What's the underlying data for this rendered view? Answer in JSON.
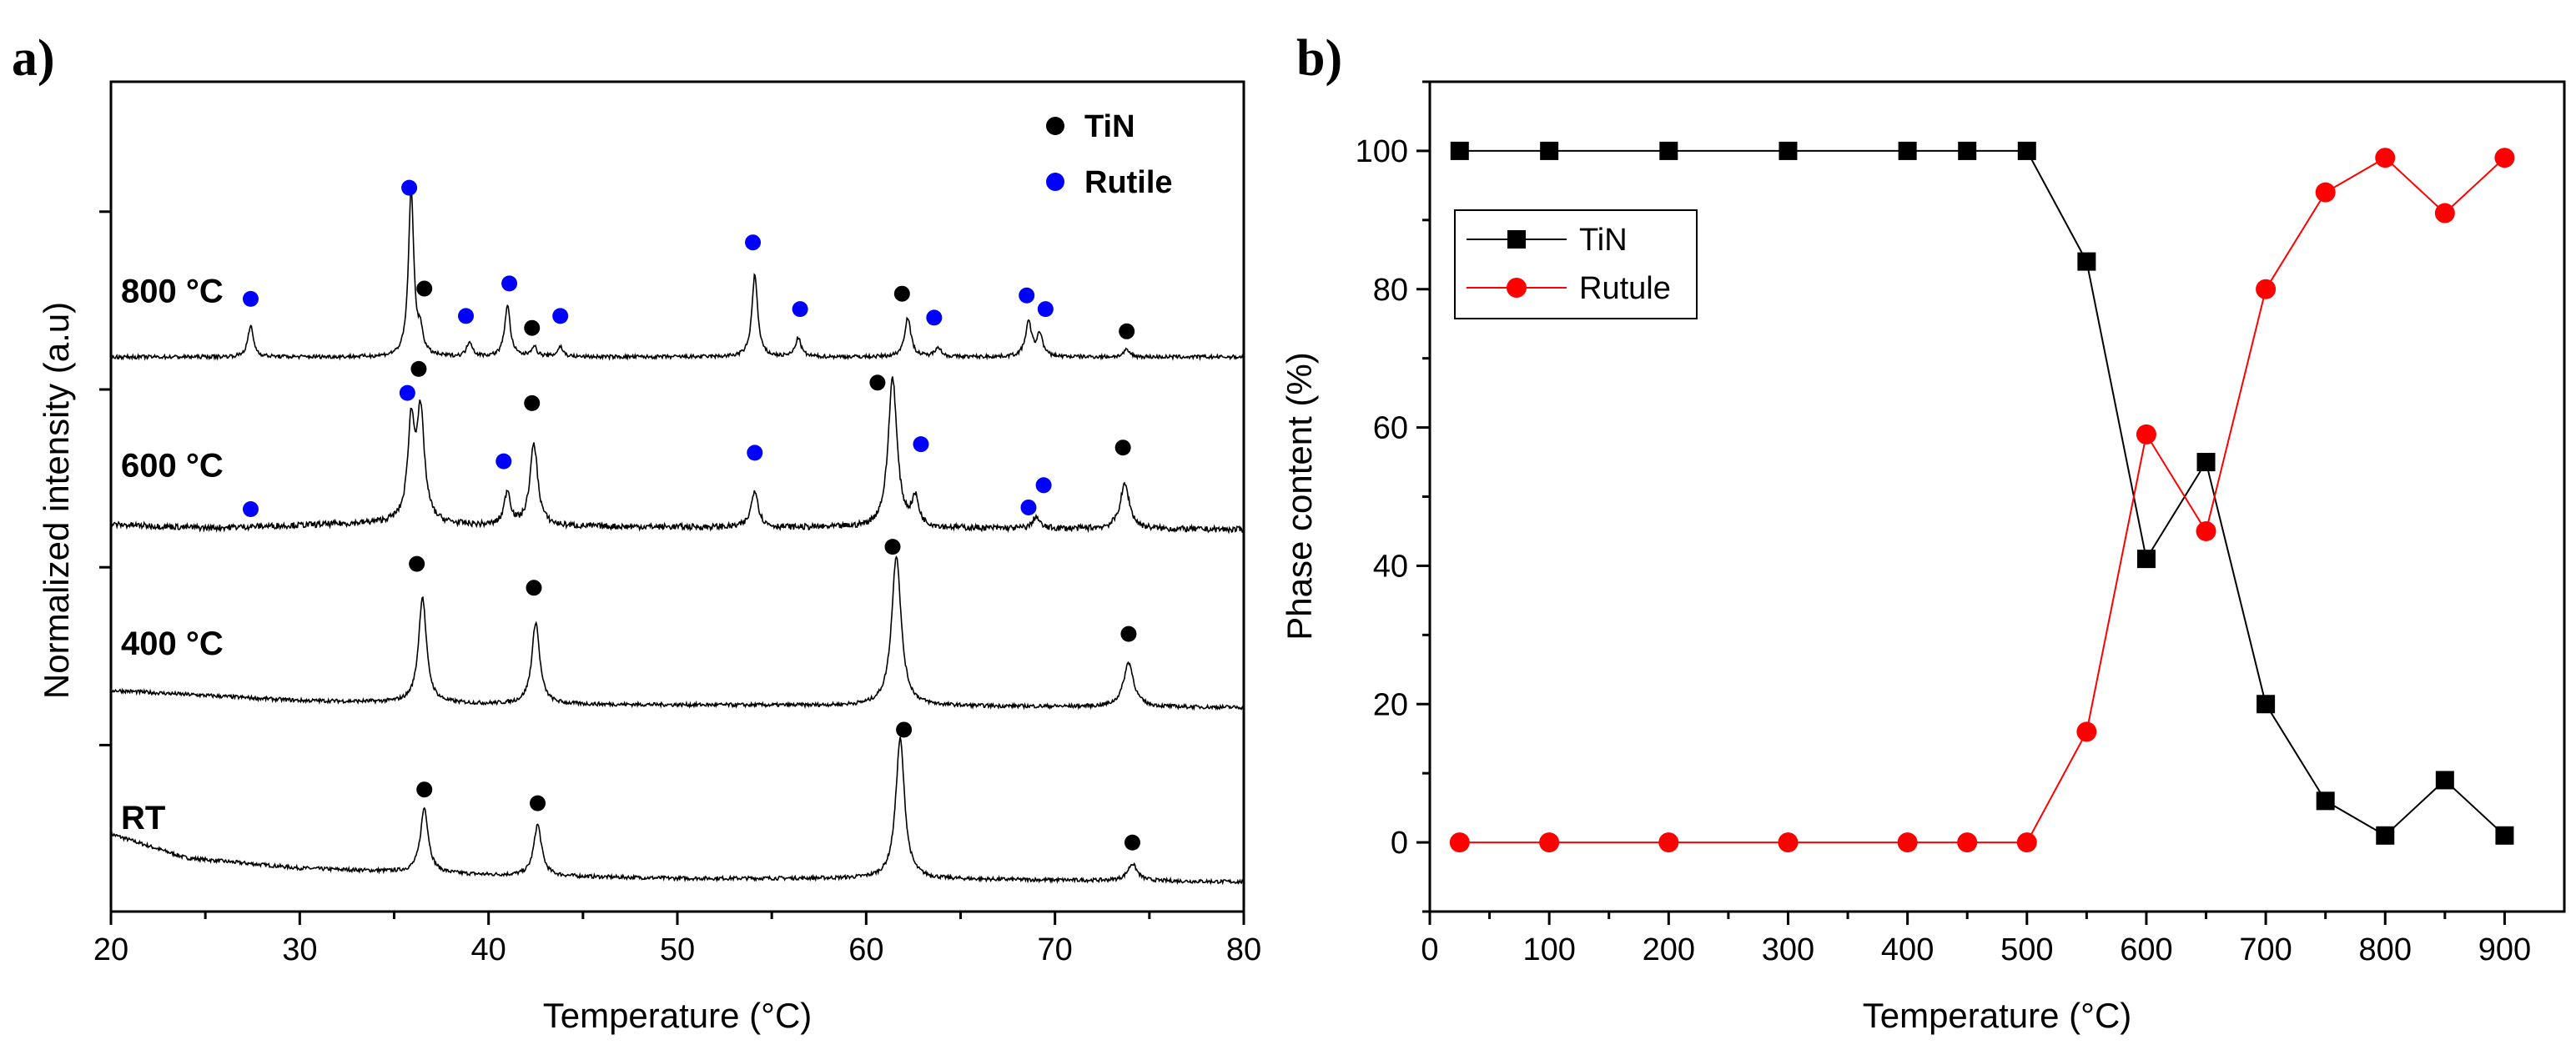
{
  "chart_data": [
    {
      "type": "line",
      "panel_label": "a)",
      "title": "",
      "xlabel": "Temperature (°C)",
      "ylabel": "Normalized intensity (a.u)",
      "xlim": [
        20,
        80
      ],
      "xticks": [
        20,
        30,
        40,
        50,
        60,
        70,
        80
      ],
      "legend": [
        {
          "name": "TiN",
          "color": "#000000"
        },
        {
          "name": "Rutile",
          "color": "#0000ff"
        }
      ],
      "series": [
        {
          "name": "RT",
          "offset": 0.1,
          "background": [
            [
              20,
              0.3
            ],
            [
              24,
              0.16
            ],
            [
              30,
              0.1
            ],
            [
              40,
              0.06
            ],
            [
              50,
              0.04
            ],
            [
              60,
              0.04
            ],
            [
              70,
              0.03
            ],
            [
              80,
              0.02
            ]
          ],
          "peaks": [
            {
              "x": 36.6,
              "h": 0.38,
              "w": 0.25
            },
            {
              "x": 42.6,
              "h": 0.3,
              "w": 0.25
            },
            {
              "x": 61.8,
              "h": 0.82,
              "w": 0.28
            },
            {
              "x": 74.1,
              "h": 0.1,
              "w": 0.3
            }
          ],
          "markers": [
            {
              "phase": "TiN",
              "x": 36.6,
              "y": 0.66
            },
            {
              "phase": "TiN",
              "x": 42.6,
              "y": 0.58
            },
            {
              "phase": "TiN",
              "x": 62.0,
              "y": 1.01
            },
            {
              "phase": "TiN",
              "x": 74.1,
              "y": 0.35
            }
          ]
        },
        {
          "name": "400 °C",
          "offset": 1.12,
          "background": [
            [
              20,
              0.12
            ],
            [
              30,
              0.06
            ],
            [
              40,
              0.04
            ],
            [
              60,
              0.03
            ],
            [
              80,
              0.02
            ]
          ],
          "peaks": [
            {
              "x": 36.5,
              "h": 0.62,
              "w": 0.25
            },
            {
              "x": 42.5,
              "h": 0.48,
              "w": 0.25
            },
            {
              "x": 61.6,
              "h": 0.88,
              "w": 0.3
            },
            {
              "x": 73.9,
              "h": 0.26,
              "w": 0.32
            }
          ],
          "markers": [
            {
              "phase": "TiN",
              "x": 36.2,
              "y": 1.98
            },
            {
              "phase": "TiN",
              "x": 42.4,
              "y": 1.84
            },
            {
              "phase": "TiN",
              "x": 61.4,
              "y": 2.08
            },
            {
              "phase": "TiN",
              "x": 73.9,
              "y": 1.57
            }
          ]
        },
        {
          "name": "600 °C",
          "offset": 2.16,
          "background": [
            [
              20,
              0.05
            ],
            [
              25,
              0.03
            ],
            [
              35,
              0.06
            ],
            [
              40,
              0.04
            ],
            [
              60,
              0.03
            ],
            [
              80,
              0.02
            ]
          ],
          "peaks": [
            {
              "x": 35.9,
              "h": 0.55,
              "w": 0.22
            },
            {
              "x": 36.4,
              "h": 0.62,
              "w": 0.25
            },
            {
              "x": 41.0,
              "h": 0.2,
              "w": 0.2
            },
            {
              "x": 42.4,
              "h": 0.48,
              "w": 0.25
            },
            {
              "x": 54.1,
              "h": 0.22,
              "w": 0.22
            },
            {
              "x": 61.4,
              "h": 0.88,
              "w": 0.28
            },
            {
              "x": 62.6,
              "h": 0.16,
              "w": 0.22
            },
            {
              "x": 69.0,
              "h": 0.07,
              "w": 0.2
            },
            {
              "x": 73.7,
              "h": 0.26,
              "w": 0.3
            }
          ],
          "markers": [
            {
              "phase": "Rutile",
              "x": 27.4,
              "y": 2.3
            },
            {
              "phase": "Rutile",
              "x": 35.7,
              "y": 2.98
            },
            {
              "phase": "TiN",
              "x": 36.3,
              "y": 3.12
            },
            {
              "phase": "Rutile",
              "x": 40.8,
              "y": 2.58
            },
            {
              "phase": "TiN",
              "x": 42.3,
              "y": 2.92
            },
            {
              "phase": "Rutile",
              "x": 54.1,
              "y": 2.63
            },
            {
              "phase": "TiN",
              "x": 60.6,
              "y": 3.04
            },
            {
              "phase": "Rutile",
              "x": 62.9,
              "y": 2.68
            },
            {
              "phase": "Rutile",
              "x": 68.6,
              "y": 2.31
            },
            {
              "phase": "Rutile",
              "x": 69.4,
              "y": 2.44
            },
            {
              "phase": "TiN",
              "x": 73.6,
              "y": 2.66
            }
          ]
        },
        {
          "name": "800 °C",
          "offset": 3.18,
          "background": [
            [
              20,
              0.01
            ],
            [
              80,
              0.01
            ]
          ],
          "peaks": [
            {
              "x": 27.4,
              "h": 0.18,
              "w": 0.18
            },
            {
              "x": 35.9,
              "h": 0.98,
              "w": 0.17
            },
            {
              "x": 36.4,
              "h": 0.12,
              "w": 0.17
            },
            {
              "x": 39.0,
              "h": 0.09,
              "w": 0.17
            },
            {
              "x": 41.0,
              "h": 0.3,
              "w": 0.18
            },
            {
              "x": 42.4,
              "h": 0.06,
              "w": 0.18
            },
            {
              "x": 43.8,
              "h": 0.06,
              "w": 0.17
            },
            {
              "x": 54.1,
              "h": 0.48,
              "w": 0.18
            },
            {
              "x": 56.4,
              "h": 0.11,
              "w": 0.18
            },
            {
              "x": 62.2,
              "h": 0.23,
              "w": 0.2
            },
            {
              "x": 63.8,
              "h": 0.06,
              "w": 0.18
            },
            {
              "x": 68.6,
              "h": 0.2,
              "w": 0.2
            },
            {
              "x": 69.2,
              "h": 0.13,
              "w": 0.18
            },
            {
              "x": 73.8,
              "h": 0.04,
              "w": 0.2
            }
          ],
          "markers": [
            {
              "phase": "Rutile",
              "x": 27.4,
              "y": 3.53
            },
            {
              "phase": "Rutile",
              "x": 35.8,
              "y": 4.18
            },
            {
              "phase": "TiN",
              "x": 36.6,
              "y": 3.59
            },
            {
              "phase": "Rutile",
              "x": 38.8,
              "y": 3.43
            },
            {
              "phase": "Rutile",
              "x": 41.1,
              "y": 3.62
            },
            {
              "phase": "TiN",
              "x": 42.3,
              "y": 3.36
            },
            {
              "phase": "Rutile",
              "x": 43.8,
              "y": 3.43
            },
            {
              "phase": "Rutile",
              "x": 54.0,
              "y": 3.86
            },
            {
              "phase": "Rutile",
              "x": 56.5,
              "y": 3.47
            },
            {
              "phase": "TiN",
              "x": 61.9,
              "y": 3.56
            },
            {
              "phase": "Rutile",
              "x": 63.6,
              "y": 3.42
            },
            {
              "phase": "Rutile",
              "x": 68.5,
              "y": 3.55
            },
            {
              "phase": "Rutile",
              "x": 69.5,
              "y": 3.47
            },
            {
              "phase": "TiN",
              "x": 73.8,
              "y": 3.34
            }
          ]
        }
      ]
    },
    {
      "type": "line",
      "panel_label": "b)",
      "title": "",
      "xlabel": "Temperature (°C)",
      "ylabel": "Phase content (%)",
      "xlim": [
        0,
        950
      ],
      "ylim": [
        -10,
        110
      ],
      "xticks": [
        0,
        100,
        200,
        300,
        400,
        500,
        600,
        700,
        800,
        900
      ],
      "yticks": [
        0,
        20,
        40,
        60,
        80,
        100
      ],
      "legend_position": "upper-left",
      "x": [
        25,
        100,
        200,
        300,
        400,
        450,
        500,
        550,
        600,
        650,
        700,
        750,
        800,
        850,
        900
      ],
      "series": [
        {
          "name": "TiN",
          "color": "#000000",
          "marker": "square",
          "values": [
            100,
            100,
            100,
            100,
            100,
            100,
            100,
            84,
            41,
            55,
            20,
            6,
            1,
            9,
            1
          ]
        },
        {
          "name": "Rutule",
          "color": "#ff0000",
          "marker": "circle",
          "values": [
            0,
            0,
            0,
            0,
            0,
            0,
            0,
            16,
            59,
            45,
            80,
            94,
            99,
            91,
            99
          ]
        }
      ]
    }
  ]
}
